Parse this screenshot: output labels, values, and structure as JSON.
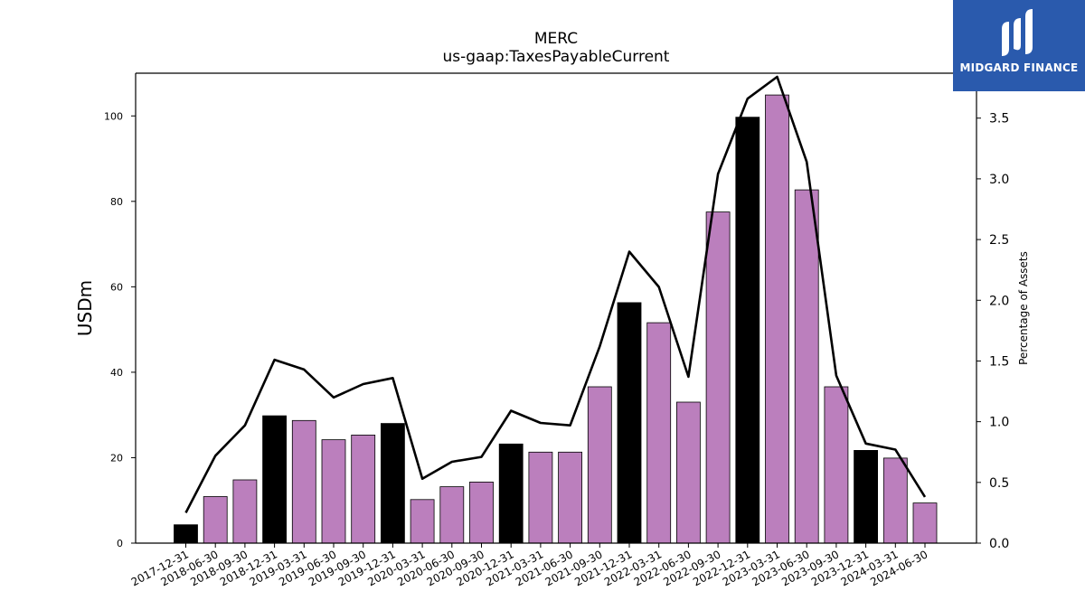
{
  "chart_data": {
    "type": "bar",
    "title": "MERC",
    "subtitle": "us-gaap:TaxesPayableCurrent",
    "ylabel": "USDm",
    "y2label": "Percentage of Assets",
    "ylim": [
      0,
      110
    ],
    "y2lim": [
      0,
      3.87
    ],
    "yticks": [
      0,
      20,
      40,
      60,
      80,
      100
    ],
    "y2ticks": [
      "0.0",
      "0.5",
      "1.0",
      "1.5",
      "2.0",
      "2.5",
      "3.0",
      "3.5"
    ],
    "categories": [
      "2017-12-31",
      "2018-06-30",
      "2018-09-30",
      "2018-12-31",
      "2019-03-31",
      "2019-06-30",
      "2019-09-30",
      "2019-12-31",
      "2020-03-31",
      "2020-06-30",
      "2020-09-30",
      "2020-12-31",
      "2021-03-31",
      "2021-06-30",
      "2021-09-30",
      "2021-12-31",
      "2022-03-31",
      "2022-06-30",
      "2022-09-30",
      "2022-12-31",
      "2023-03-31",
      "2023-06-30",
      "2023-09-30",
      "2023-12-31",
      "2024-03-31",
      "2024-06-30"
    ],
    "values": [
      4.3,
      10.9,
      14.8,
      29.8,
      28.7,
      24.2,
      25.3,
      28.0,
      10.2,
      13.2,
      14.3,
      23.2,
      21.3,
      21.3,
      36.6,
      56.3,
      51.6,
      33.0,
      77.5,
      99.7,
      104.9,
      82.7,
      36.6,
      21.7,
      19.9,
      9.4
    ],
    "highlight": [
      true,
      false,
      false,
      true,
      false,
      false,
      false,
      true,
      false,
      false,
      false,
      true,
      false,
      false,
      false,
      true,
      false,
      false,
      false,
      true,
      false,
      false,
      false,
      true,
      false,
      false
    ],
    "percent_of_assets": [
      0.25,
      0.72,
      0.97,
      1.51,
      1.43,
      1.2,
      1.31,
      1.36,
      0.53,
      0.67,
      0.71,
      1.09,
      0.99,
      0.97,
      1.62,
      2.4,
      2.11,
      1.37,
      3.04,
      3.66,
      3.84,
      3.14,
      1.38,
      0.82,
      0.77,
      0.38
    ],
    "colors": {
      "bar": "#bb7fbd",
      "highlight_bar": "#000000",
      "line": "#000000"
    },
    "grid": false
  },
  "logo": {
    "text": "MIDGARD FINANCE",
    "color": "#2a5aad"
  }
}
